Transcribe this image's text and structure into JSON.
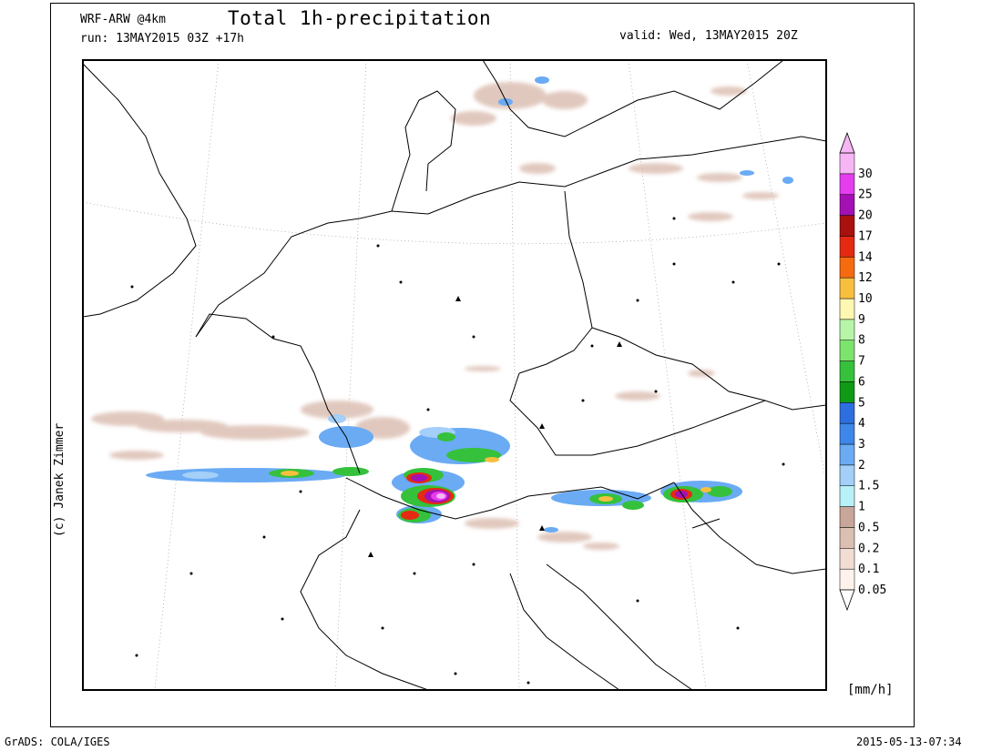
{
  "header": {
    "model": "WRF-ARW @4km",
    "run": "run: 13MAY2015 03Z +17h",
    "title": "Total 1h-precipitation",
    "valid": "valid: Wed, 13MAY2015 20Z"
  },
  "credit": "(c) Janek Zimmer",
  "units": "[mm/h]",
  "footer": {
    "software": "GrADS: COLA/IGES",
    "timestamp": "2015-05-13-07:34"
  },
  "colorbar": {
    "levels": [
      {
        "label": "0.05",
        "color": "#fdf3ec"
      },
      {
        "label": "0.1",
        "color": "#f1ddd3"
      },
      {
        "label": "0.2",
        "color": "#dcbfb3"
      },
      {
        "label": "0.5",
        "color": "#c8a69a"
      },
      {
        "label": "1",
        "color": "#b7f0f6"
      },
      {
        "label": "1.5",
        "color": "#a3cff8"
      },
      {
        "label": "2",
        "color": "#6aabf4"
      },
      {
        "label": "3",
        "color": "#3e87ea"
      },
      {
        "label": "4",
        "color": "#2d6fe0"
      },
      {
        "label": "5",
        "color": "#0f9a16"
      },
      {
        "label": "6",
        "color": "#35c13b"
      },
      {
        "label": "7",
        "color": "#7ce36d"
      },
      {
        "label": "8",
        "color": "#b7f6a8"
      },
      {
        "label": "9",
        "color": "#fdf7b2"
      },
      {
        "label": "10",
        "color": "#f8bf3f"
      },
      {
        "label": "12",
        "color": "#f76b10"
      },
      {
        "label": "14",
        "color": "#e42a12"
      },
      {
        "label": "17",
        "color": "#a9110e"
      },
      {
        "label": "20",
        "color": "#a310b4"
      },
      {
        "label": "25",
        "color": "#e63cf0"
      },
      {
        "label": "30",
        "color": "#f6b6f4"
      }
    ]
  }
}
